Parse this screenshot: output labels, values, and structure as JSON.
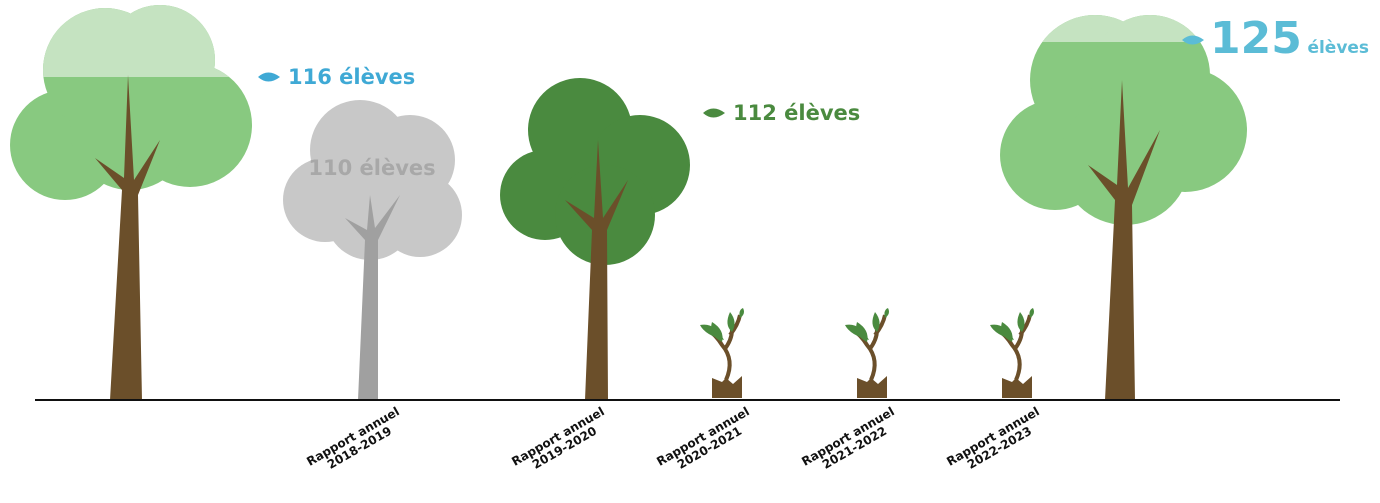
{
  "trees": [
    {
      "count": "116",
      "unit": "élèves"
    },
    {
      "count": "110",
      "unit": "élèves"
    },
    {
      "count": "112",
      "unit": "élèves"
    },
    {
      "count": "125",
      "unit": "élèves"
    }
  ],
  "reports": [
    {
      "line1": "Rapport annuel",
      "line2": "2018-2019"
    },
    {
      "line1": "Rapport annuel",
      "line2": "2019-2020"
    },
    {
      "line1": "Rapport annuel",
      "line2": "2020-2021"
    },
    {
      "line1": "Rapport annuel",
      "line2": "2021-2022"
    },
    {
      "line1": "Rapport annuel",
      "line2": "2022-2023"
    }
  ]
}
